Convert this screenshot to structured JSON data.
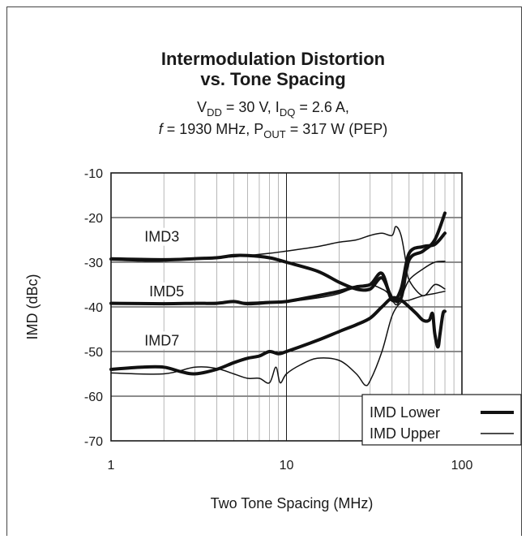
{
  "chart_data": {
    "type": "line",
    "title": "Intermodulation Distortion",
    "title_line2": "vs. Tone Spacing",
    "subtitle_line1": {
      "parts": [
        "V",
        "DD",
        " = 30 V, I",
        "DQ",
        " = 2.6 A,"
      ]
    },
    "subtitle_line2": {
      "f": "f",
      "parts": [
        " = 1930 MHz, P",
        "OUT",
        " = 317 W (PEP)"
      ]
    },
    "xlabel": "Two Tone Spacing (MHz)",
    "ylabel": "IMD (dBc)",
    "xscale": "log",
    "xlim": [
      1,
      100
    ],
    "ylim": [
      -70,
      -10
    ],
    "x_ticks": [
      1,
      10,
      100
    ],
    "x_tick_labels": [
      "1",
      "10",
      "100"
    ],
    "y_ticks": [
      -10,
      -20,
      -30,
      -40,
      -50,
      -60,
      -70
    ],
    "y_tick_labels": [
      "-10",
      "-20",
      "-30",
      "-40",
      "-50",
      "-60",
      "-70"
    ],
    "grid": true,
    "legend": {
      "position": "bottom-right",
      "entries": [
        {
          "label": "IMD Lower",
          "width": "thick"
        },
        {
          "label": "IMD Upper",
          "width": "thin"
        }
      ]
    },
    "annotations": [
      {
        "text": "IMD3",
        "x": 1.55,
        "y": -25.4
      },
      {
        "text": "IMD5",
        "x": 1.65,
        "y": -37.6
      },
      {
        "text": "IMD7",
        "x": 1.55,
        "y": -48.6
      }
    ],
    "series": [
      {
        "group": "IMD3",
        "legend": "IMD Lower",
        "width": "thick",
        "x": [
          1,
          1.5,
          2,
          3,
          4,
          5,
          6,
          8,
          10,
          15,
          20,
          25,
          30,
          35,
          40,
          45,
          50,
          60,
          70,
          80
        ],
        "y": [
          -29.3,
          -29.5,
          -29.5,
          -29.2,
          -29.0,
          -28.5,
          -28.5,
          -29.0,
          -30.0,
          -32.0,
          -34.5,
          -36.0,
          -36.0,
          -33.5,
          -38.0,
          -38.0,
          -29.5,
          -27.5,
          -25.0,
          -19.0
        ]
      },
      {
        "group": "IMD3",
        "legend": "IMD Upper",
        "width": "thin",
        "x": [
          1,
          2,
          4,
          6,
          8,
          10,
          15,
          20,
          25,
          30,
          35,
          40,
          42,
          45,
          48,
          50,
          60,
          70,
          80
        ],
        "y": [
          -29.0,
          -29.2,
          -29.0,
          -28.5,
          -28.0,
          -27.5,
          -26.5,
          -25.5,
          -25.0,
          -24.0,
          -23.5,
          -24.0,
          -22.0,
          -24.0,
          -30.0,
          -34.0,
          -37.5,
          -35.0,
          -36.0
        ]
      },
      {
        "group": "IMD5",
        "legend": "IMD Lower",
        "width": "thick",
        "x": [
          1,
          2,
          3,
          4,
          5,
          6,
          8,
          10,
          15,
          20,
          25,
          30,
          35,
          40,
          45,
          50,
          60,
          70,
          80
        ],
        "y": [
          -39.2,
          -39.3,
          -39.2,
          -39.2,
          -38.8,
          -39.3,
          -39.0,
          -38.8,
          -37.5,
          -36.5,
          -35.5,
          -35.0,
          -32.5,
          -38.5,
          -36.0,
          -28.0,
          -26.5,
          -26.0,
          -23.5
        ]
      },
      {
        "group": "IMD5",
        "legend": "IMD Upper",
        "width": "thin",
        "x": [
          1,
          2,
          4,
          6,
          8,
          10,
          15,
          20,
          25,
          30,
          35,
          38,
          42,
          45,
          50,
          60,
          70,
          80
        ],
        "y": [
          -39.0,
          -39.2,
          -39.0,
          -39.0,
          -38.8,
          -38.8,
          -38.0,
          -37.0,
          -35.5,
          -35.0,
          -36.0,
          -37.0,
          -39.5,
          -38.0,
          -34.0,
          -31.5,
          -30.0,
          -29.8
        ]
      },
      {
        "group": "IMD7",
        "legend": "IMD Lower",
        "width": "thick",
        "x": [
          1,
          1.5,
          2,
          2.5,
          3,
          4,
          5,
          6,
          7,
          8,
          9,
          10,
          15,
          20,
          25,
          30,
          35,
          40,
          45,
          50,
          55,
          60,
          65,
          68,
          70,
          73,
          75,
          78,
          80
        ],
        "y": [
          -54.0,
          -53.5,
          -53.5,
          -54.5,
          -55.0,
          -54.0,
          -52.5,
          -51.5,
          -51.0,
          -50.0,
          -50.5,
          -50.0,
          -47.5,
          -45.5,
          -44.0,
          -42.5,
          -40.0,
          -38.0,
          -38.5,
          -40.0,
          -41.5,
          -43.0,
          -43.0,
          -41.5,
          -46.0,
          -49.0,
          -46.0,
          -41.5,
          -41.0
        ]
      },
      {
        "group": "IMD7",
        "legend": "IMD Upper",
        "width": "thin",
        "x": [
          1,
          2,
          3,
          4,
          5,
          6,
          7,
          8,
          8.7,
          9.2,
          10,
          12,
          15,
          20,
          25,
          28,
          30,
          35,
          40,
          45,
          50,
          60,
          70,
          80
        ],
        "y": [
          -54.8,
          -55.0,
          -53.5,
          -53.8,
          -55.0,
          -56.0,
          -56.0,
          -57.0,
          -53.5,
          -57.0,
          -55.0,
          -53.0,
          -51.5,
          -52.0,
          -55.0,
          -57.5,
          -56.5,
          -50.0,
          -42.0,
          -39.0,
          -38.5,
          -37.5,
          -37.0,
          -36.5
        ]
      }
    ]
  }
}
